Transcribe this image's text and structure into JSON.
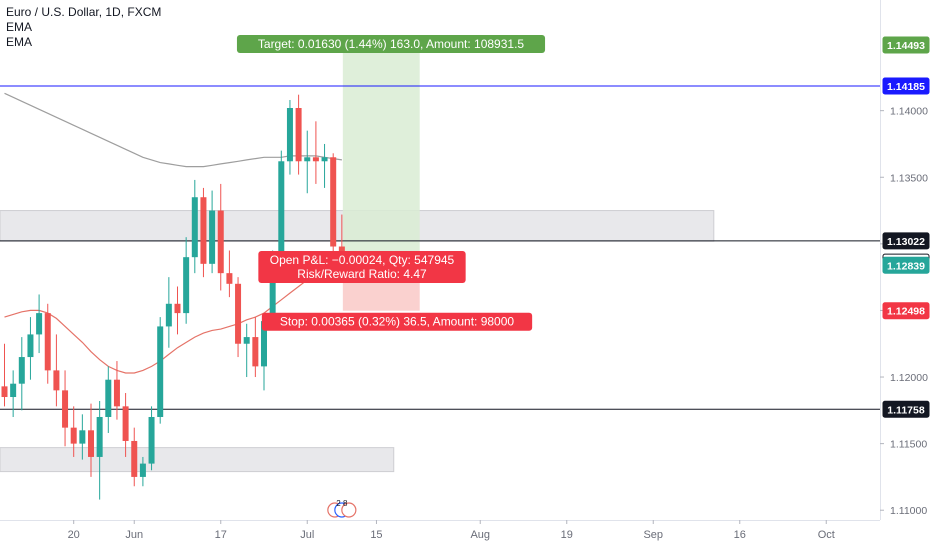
{
  "legend": {
    "symbol": "Euro / U.S. Dollar, 1D, FXCM",
    "ema_1": "EMA",
    "ema_2": "EMA"
  },
  "events_badge": {
    "count": "2 8"
  },
  "colors": {
    "up": "#26a69a",
    "down": "#ef5350",
    "target_zone": "#d9ecd4",
    "stop_zone": "#f9c9c7",
    "target_label": "#5ea54a",
    "stop_label": "#f23645",
    "price_line_blue": "#1a1aff",
    "ema_slow": "#9e9e9e",
    "ema_fast": "#e57368",
    "gray_zone": "#e6e6e9",
    "last_price": "#26a69a"
  },
  "chart_data": {
    "type": "candlestick",
    "symbol": "Euro / U.S. Dollar",
    "timeframe": "1D",
    "source": "FXCM",
    "ylim": [
      1.1085,
      1.1475
    ],
    "y_ticks": [
      1.11,
      1.115,
      1.12,
      1.125,
      1.13,
      1.135,
      1.14
    ],
    "y_tick_labels": [
      "1.11000",
      "1.11500",
      "1.12000",
      "1.12500",
      "1.13000",
      "1.13500",
      "1.14000"
    ],
    "x_axis": [
      {
        "label": "20",
        "bar": 8
      },
      {
        "label": "Jun",
        "bar": 15
      },
      {
        "label": "17",
        "bar": 25
      },
      {
        "label": "Jul",
        "bar": 35
      },
      {
        "label": "15",
        "bar": 43
      },
      {
        "label": "Aug",
        "bar": 55
      },
      {
        "label": "19",
        "bar": 65
      },
      {
        "label": "Sep",
        "bar": 75
      },
      {
        "label": "16",
        "bar": 85
      },
      {
        "label": "Oct",
        "bar": 95
      }
    ],
    "candles": [
      {
        "o": 1.1193,
        "h": 1.1225,
        "l": 1.1178,
        "c": 1.1185
      },
      {
        "o": 1.1185,
        "h": 1.1205,
        "l": 1.117,
        "c": 1.1195
      },
      {
        "o": 1.1195,
        "h": 1.123,
        "l": 1.1175,
        "c": 1.1215
      },
      {
        "o": 1.1215,
        "h": 1.1245,
        "l": 1.1198,
        "c": 1.1232
      },
      {
        "o": 1.1232,
        "h": 1.1262,
        "l": 1.1218,
        "c": 1.1248
      },
      {
        "o": 1.1248,
        "h": 1.1255,
        "l": 1.1195,
        "c": 1.1205
      },
      {
        "o": 1.1205,
        "h": 1.1232,
        "l": 1.1178,
        "c": 1.119
      },
      {
        "o": 1.119,
        "h": 1.1205,
        "l": 1.1148,
        "c": 1.1162
      },
      {
        "o": 1.1162,
        "h": 1.1178,
        "l": 1.114,
        "c": 1.115
      },
      {
        "o": 1.115,
        "h": 1.1172,
        "l": 1.1138,
        "c": 1.116
      },
      {
        "o": 1.116,
        "h": 1.118,
        "l": 1.1125,
        "c": 1.114
      },
      {
        "o": 1.114,
        "h": 1.1182,
        "l": 1.1108,
        "c": 1.117
      },
      {
        "o": 1.117,
        "h": 1.1208,
        "l": 1.1158,
        "c": 1.1198
      },
      {
        "o": 1.1198,
        "h": 1.1212,
        "l": 1.1168,
        "c": 1.1178
      },
      {
        "o": 1.1178,
        "h": 1.1188,
        "l": 1.114,
        "c": 1.1152
      },
      {
        "o": 1.1152,
        "h": 1.1162,
        "l": 1.1118,
        "c": 1.1125
      },
      {
        "o": 1.1125,
        "h": 1.114,
        "l": 1.1118,
        "c": 1.1135
      },
      {
        "o": 1.1135,
        "h": 1.1178,
        "l": 1.113,
        "c": 1.117
      },
      {
        "o": 1.117,
        "h": 1.1245,
        "l": 1.1165,
        "c": 1.1238
      },
      {
        "o": 1.1238,
        "h": 1.1275,
        "l": 1.1222,
        "c": 1.1255
      },
      {
        "o": 1.1255,
        "h": 1.1268,
        "l": 1.1232,
        "c": 1.1248
      },
      {
        "o": 1.1248,
        "h": 1.1305,
        "l": 1.124,
        "c": 1.129
      },
      {
        "o": 1.129,
        "h": 1.1348,
        "l": 1.1278,
        "c": 1.1335
      },
      {
        "o": 1.1335,
        "h": 1.1342,
        "l": 1.1275,
        "c": 1.1285
      },
      {
        "o": 1.1285,
        "h": 1.134,
        "l": 1.1278,
        "c": 1.1325
      },
      {
        "o": 1.1325,
        "h": 1.1345,
        "l": 1.1265,
        "c": 1.1278
      },
      {
        "o": 1.1278,
        "h": 1.1295,
        "l": 1.126,
        "c": 1.127
      },
      {
        "o": 1.127,
        "h": 1.1275,
        "l": 1.1215,
        "c": 1.1225
      },
      {
        "o": 1.1225,
        "h": 1.124,
        "l": 1.12,
        "c": 1.123
      },
      {
        "o": 1.123,
        "h": 1.1245,
        "l": 1.12,
        "c": 1.1208
      },
      {
        "o": 1.1208,
        "h": 1.1248,
        "l": 1.119,
        "c": 1.1242
      },
      {
        "o": 1.1242,
        "h": 1.1295,
        "l": 1.1235,
        "c": 1.1288
      },
      {
        "o": 1.1288,
        "h": 1.137,
        "l": 1.1282,
        "c": 1.1362
      },
      {
        "o": 1.1362,
        "h": 1.1408,
        "l": 1.1352,
        "c": 1.1402
      },
      {
        "o": 1.1402,
        "h": 1.1412,
        "l": 1.1352,
        "c": 1.1362
      },
      {
        "o": 1.1362,
        "h": 1.1385,
        "l": 1.1338,
        "c": 1.1365
      },
      {
        "o": 1.1365,
        "h": 1.1392,
        "l": 1.1345,
        "c": 1.1362
      },
      {
        "o": 1.1362,
        "h": 1.1375,
        "l": 1.1342,
        "c": 1.1365
      },
      {
        "o": 1.1365,
        "h": 1.1368,
        "l": 1.1285,
        "c": 1.1298
      },
      {
        "o": 1.1298,
        "h": 1.1322,
        "l": 1.1282,
        "c": 1.129
      }
    ],
    "ema_slow": {
      "start_bar": 0,
      "values": [
        1.1413,
        1.141,
        1.1407,
        1.1404,
        1.1401,
        1.1398,
        1.1395,
        1.1392,
        1.1389,
        1.1386,
        1.1383,
        1.138,
        1.1377,
        1.1374,
        1.1371,
        1.1368,
        1.1365,
        1.1363,
        1.1361,
        1.136,
        1.1359,
        1.1358,
        1.1358,
        1.1358,
        1.1359,
        1.136,
        1.1361,
        1.1362,
        1.1363,
        1.1364,
        1.1365,
        1.1365,
        1.1365,
        1.1366,
        1.1366,
        1.1366,
        1.1366,
        1.1365,
        1.1364,
        1.1363
      ]
    },
    "ema_fast": {
      "start_bar": 0,
      "values": [
        1.1245,
        1.1247,
        1.1249,
        1.125,
        1.125,
        1.1248,
        1.1244,
        1.1238,
        1.1232,
        1.1226,
        1.1219,
        1.1213,
        1.1208,
        1.1205,
        1.1203,
        1.1203,
        1.1205,
        1.1208,
        1.1212,
        1.1217,
        1.1222,
        1.1226,
        1.123,
        1.1233,
        1.1235,
        1.1236,
        1.1238,
        1.124,
        1.1243,
        1.1245,
        1.1248,
        1.1253,
        1.1258,
        1.1263,
        1.1268,
        1.1273,
        1.1278,
        1.1281,
        1.1283,
        1.1284
      ]
    },
    "zones": [
      {
        "from_bar": -1,
        "to_bar": 82,
        "y_low": 1.1302,
        "y_high": 1.1325
      },
      {
        "from_bar": -1,
        "to_bar": 45,
        "y_low": 1.1129,
        "y_high": 1.1147
      }
    ],
    "horizontal_lines": [
      {
        "price": 1.14185,
        "label": "1.14185",
        "color": "blue"
      },
      {
        "price": 1.13022,
        "label": "1.13022",
        "color": "black"
      },
      {
        "price": 1.11758,
        "label": "1.11758",
        "color": "black"
      }
    ],
    "position": {
      "type": "long",
      "entry": 1.12863,
      "target": 1.14493,
      "stop": 1.12498,
      "from_bar": 39,
      "to_bar": 48,
      "target_label": "Target: 0.01630 (1.44%) 163.0, Amount: 108931.5",
      "stop_label": "Stop: 0.00365 (0.32%) 36.5, Amount: 98000",
      "pnl_label": "Open P&L: −0.00024, Qty: 547945",
      "rr_label": "Risk/Reward Ratio: 4.47"
    },
    "price_badges": [
      {
        "price": 1.14493,
        "label": "1.14493",
        "style": "target"
      },
      {
        "price": 1.12863,
        "label": "1.12863",
        "style": "entry"
      },
      {
        "price": 1.12839,
        "label": "1.12839",
        "style": "last"
      },
      {
        "price": 1.12498,
        "label": "1.12498",
        "style": "stop"
      }
    ]
  }
}
